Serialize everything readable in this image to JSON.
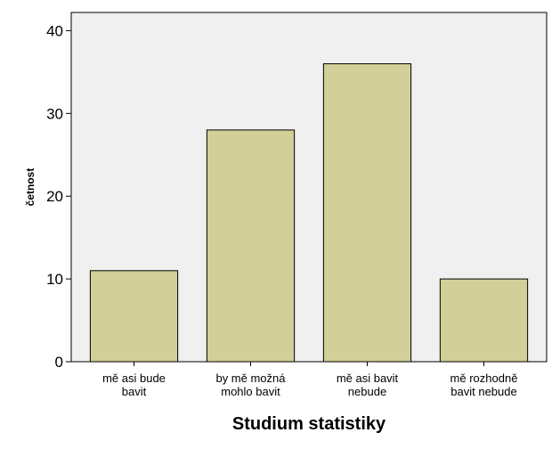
{
  "chart_data": {
    "type": "bar",
    "categories": [
      [
        "mě asi bude",
        "bavit"
      ],
      [
        "by mě možná",
        "mohlo bavit"
      ],
      [
        "mě asi bavit",
        "nebude"
      ],
      [
        "mě rozhodně",
        "bavit nebude"
      ]
    ],
    "values": [
      11,
      28,
      36,
      10
    ],
    "xlabel": "Studium statistiky",
    "ylabel": "četnost",
    "ylim": [
      0,
      40
    ],
    "yticks": [
      0,
      10,
      20,
      30,
      40
    ],
    "grid": false,
    "colors": {
      "bar_fill": "#d3cf98",
      "plot_background": "#f0f0f0",
      "bar_stroke": "#000000"
    }
  }
}
